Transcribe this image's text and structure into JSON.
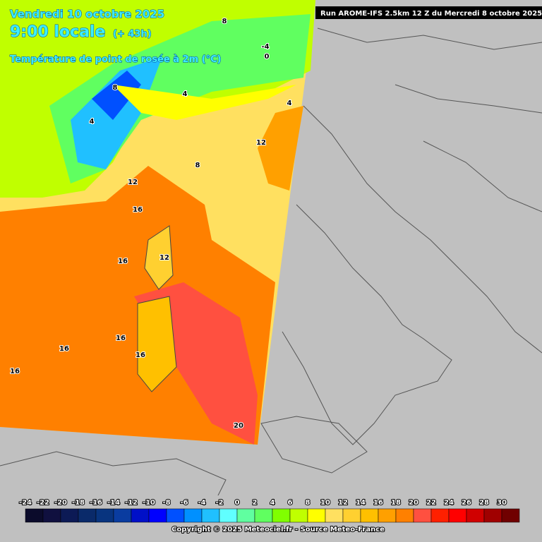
{
  "header": {
    "date": "Vendredi 10 octobre 2025",
    "time": "9:00 locale",
    "lead": "(+ 43h)",
    "parameter": "Température de point de rosée à 2m (°C)",
    "run": "Run AROME-IFS 2.5km 12 Z du Mercredi 8 octobre 2025"
  },
  "contour_labels": [
    16,
    16,
    12,
    16,
    16,
    16,
    16,
    20,
    12,
    12,
    8,
    4,
    4,
    8,
    -4,
    0,
    4,
    8
  ],
  "legend": {
    "labels": [
      -24,
      -22,
      -20,
      -18,
      -16,
      -14,
      -12,
      -10,
      -8,
      -6,
      -4,
      -2,
      0,
      2,
      4,
      6,
      8,
      10,
      12,
      14,
      16,
      18,
      20,
      22,
      24,
      26,
      28,
      30
    ],
    "colors": [
      "#0b0b2b",
      "#10103f",
      "#0c1a55",
      "#0a2a6a",
      "#08347f",
      "#0a3ca0",
      "#0010c8",
      "#0000ff",
      "#0050ff",
      "#0090ff",
      "#20c0ff",
      "#60ffff",
      "#60ffa0",
      "#60ff60",
      "#80ff00",
      "#c0ff00",
      "#ffff00",
      "#ffe060",
      "#ffd030",
      "#ffc000",
      "#ffa000",
      "#ff8000",
      "#ff5040",
      "#ff2000",
      "#ff0000",
      "#d00000",
      "#a00000",
      "#700000"
    ]
  },
  "footer": "Copyright © 2025 Meteociel.fr - Source Meteo-France"
}
